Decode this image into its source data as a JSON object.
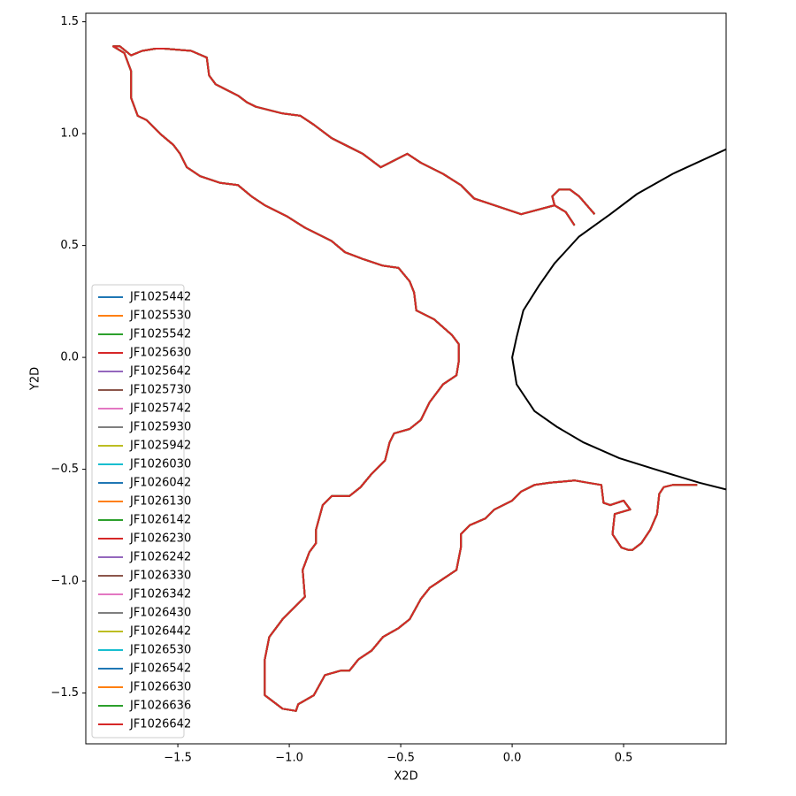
{
  "chart_data": {
    "type": "line",
    "xlabel": "X2D",
    "ylabel": "Y2D",
    "xlim": [
      -1.913,
      0.96
    ],
    "ylim": [
      -1.727,
      1.538
    ],
    "xticks": [
      {
        "value": -1.5,
        "label": "−1.5"
      },
      {
        "value": -1.0,
        "label": "−1.0"
      },
      {
        "value": -0.5,
        "label": "−0.5"
      },
      {
        "value": 0,
        "label": "0.0"
      },
      0.5
    ],
    "yticks": [
      {
        "value": -1.5,
        "label": "−1.5"
      },
      {
        "value": -1.0,
        "label": "−1.0"
      },
      {
        "value": -0.5,
        "label": "−0.5"
      },
      {
        "value": 0,
        "label": "0.0"
      },
      0.5,
      {
        "value": 1.0,
        "label": "1.0"
      },
      1.5
    ],
    "legend": "lower left",
    "x": [
      0.28,
      0.24,
      0.19,
      0.18,
      0.21,
      0.26,
      0.3,
      0.37,
      null,
      0.19,
      0.04,
      -0.08,
      -0.17,
      -0.23,
      -0.31,
      -0.41,
      -0.47,
      -0.59,
      -0.67,
      -0.73,
      -0.81,
      -0.89,
      -0.95,
      -1.03,
      -1.15,
      -1.19,
      -1.23,
      -1.33,
      -1.36,
      -1.37,
      -1.44,
      -1.56,
      -1.6,
      -1.66,
      -1.71,
      -1.76,
      -1.79,
      -1.74,
      -1.71,
      -1.71,
      -1.68,
      -1.64,
      -1.58,
      -1.52,
      -1.49,
      -1.46,
      -1.4,
      -1.31,
      -1.23,
      -1.17,
      -1.11,
      -1.01,
      -0.93,
      -0.81,
      -0.75,
      -0.67,
      -0.58,
      -0.51,
      -0.46,
      -0.44,
      -0.43,
      -0.35,
      -0.27,
      -0.24,
      -0.24,
      -0.25,
      -0.31,
      -0.37,
      -0.41,
      -0.46,
      -0.53,
      -0.55,
      -0.57,
      -0.63,
      -0.68,
      -0.73,
      -0.81,
      -0.85,
      -0.88,
      -0.88,
      -0.91,
      -0.94,
      -0.93,
      -0.97,
      -1.03,
      -1.09,
      -1.11,
      -1.11,
      -1.03,
      -0.97,
      -0.96,
      -0.89,
      -0.84,
      -0.77,
      -0.73,
      -0.69,
      -0.63,
      -0.58,
      -0.51,
      -0.46,
      -0.41,
      -0.37,
      -0.31,
      -0.25,
      -0.23,
      -0.23,
      -0.19,
      -0.12,
      -0.08,
      0.0,
      0.04,
      0.1,
      0.17,
      0.28,
      0.34,
      0.4,
      0.41,
      0.44,
      0.5,
      0.53,
      0.46,
      0.45,
      0.49,
      0.52,
      0.54,
      0.58,
      0.62,
      0.65,
      0.66,
      0.68,
      0.72,
      0.83
    ],
    "values": [
      0.59,
      0.65,
      0.68,
      0.72,
      0.75,
      0.75,
      0.72,
      0.64,
      null,
      0.68,
      0.64,
      0.68,
      0.71,
      0.77,
      0.82,
      0.87,
      0.91,
      0.85,
      0.91,
      0.94,
      0.98,
      1.04,
      1.08,
      1.09,
      1.12,
      1.14,
      1.17,
      1.22,
      1.26,
      1.34,
      1.37,
      1.38,
      1.38,
      1.37,
      1.35,
      1.39,
      1.39,
      1.36,
      1.28,
      1.16,
      1.08,
      1.06,
      1.0,
      0.95,
      0.91,
      0.85,
      0.81,
      0.78,
      0.77,
      0.72,
      0.68,
      0.63,
      0.58,
      0.52,
      0.47,
      0.44,
      0.41,
      0.4,
      0.34,
      0.29,
      0.21,
      0.17,
      0.1,
      0.06,
      -0.02,
      -0.08,
      -0.12,
      -0.2,
      -0.28,
      -0.32,
      -0.34,
      -0.38,
      -0.46,
      -0.52,
      -0.58,
      -0.62,
      -0.62,
      -0.66,
      -0.77,
      -0.83,
      -0.87,
      -0.95,
      -1.07,
      -1.11,
      -1.17,
      -1.25,
      -1.35,
      -1.51,
      -1.57,
      -1.58,
      -1.55,
      -1.51,
      -1.42,
      -1.4,
      -1.4,
      -1.35,
      -1.31,
      -1.25,
      -1.21,
      -1.17,
      -1.08,
      -1.03,
      -0.99,
      -0.95,
      -0.85,
      -0.79,
      -0.75,
      -0.72,
      -0.68,
      -0.64,
      -0.6,
      -0.57,
      -0.56,
      -0.55,
      -0.56,
      -0.57,
      -0.65,
      -0.66,
      -0.64,
      -0.68,
      -0.7,
      -0.79,
      -0.85,
      -0.86,
      -0.86,
      -0.83,
      -0.77,
      -0.7,
      -0.61,
      -0.58,
      -0.57,
      -0.57
    ],
    "series": [
      {
        "name": "JF1025442",
        "color": "#1f77b4"
      },
      {
        "name": "JF1025530",
        "color": "#ff7f0e"
      },
      {
        "name": "JF1025542",
        "color": "#2ca02c"
      },
      {
        "name": "JF1025630",
        "color": "#d62728"
      },
      {
        "name": "JF1025642",
        "color": "#9467bd"
      },
      {
        "name": "JF1025730",
        "color": "#8c564b"
      },
      {
        "name": "JF1025742",
        "color": "#e377c2"
      },
      {
        "name": "JF1025930",
        "color": "#7f7f7f"
      },
      {
        "name": "JF1025942",
        "color": "#bcbd22"
      },
      {
        "name": "JF1026030",
        "color": "#17becf"
      },
      {
        "name": "JF1026042",
        "color": "#1f77b4"
      },
      {
        "name": "JF1026130",
        "color": "#ff7f0e"
      },
      {
        "name": "JF1026142",
        "color": "#2ca02c"
      },
      {
        "name": "JF1026230",
        "color": "#d62728"
      },
      {
        "name": "JF1026242",
        "color": "#9467bd"
      },
      {
        "name": "JF1026330",
        "color": "#8c564b"
      },
      {
        "name": "JF1026342",
        "color": "#e377c2"
      },
      {
        "name": "JF1026430",
        "color": "#7f7f7f"
      },
      {
        "name": "JF1026442",
        "color": "#bcbd22"
      },
      {
        "name": "JF1026530",
        "color": "#17becf"
      },
      {
        "name": "JF1026542",
        "color": "#1f77b4"
      },
      {
        "name": "JF1026630",
        "color": "#ff7f0e"
      },
      {
        "name": "JF1026636",
        "color": "#2ca02c"
      },
      {
        "name": "JF1026642",
        "color": "#d62728"
      }
    ],
    "boundary": {
      "color": "#000000",
      "x": [
        0.96,
        0.72,
        0.56,
        0.44,
        0.3,
        0.19,
        0.12,
        0.05,
        0.02,
        0.0,
        0.02,
        0.1,
        0.2,
        0.32,
        0.48,
        0.64,
        0.84,
        0.96
      ],
      "values": [
        0.93,
        0.82,
        0.73,
        0.64,
        0.54,
        0.42,
        0.32,
        0.21,
        0.09,
        0.0,
        -0.12,
        -0.24,
        -0.31,
        -0.38,
        -0.45,
        -0.5,
        -0.56,
        -0.59
      ]
    }
  }
}
